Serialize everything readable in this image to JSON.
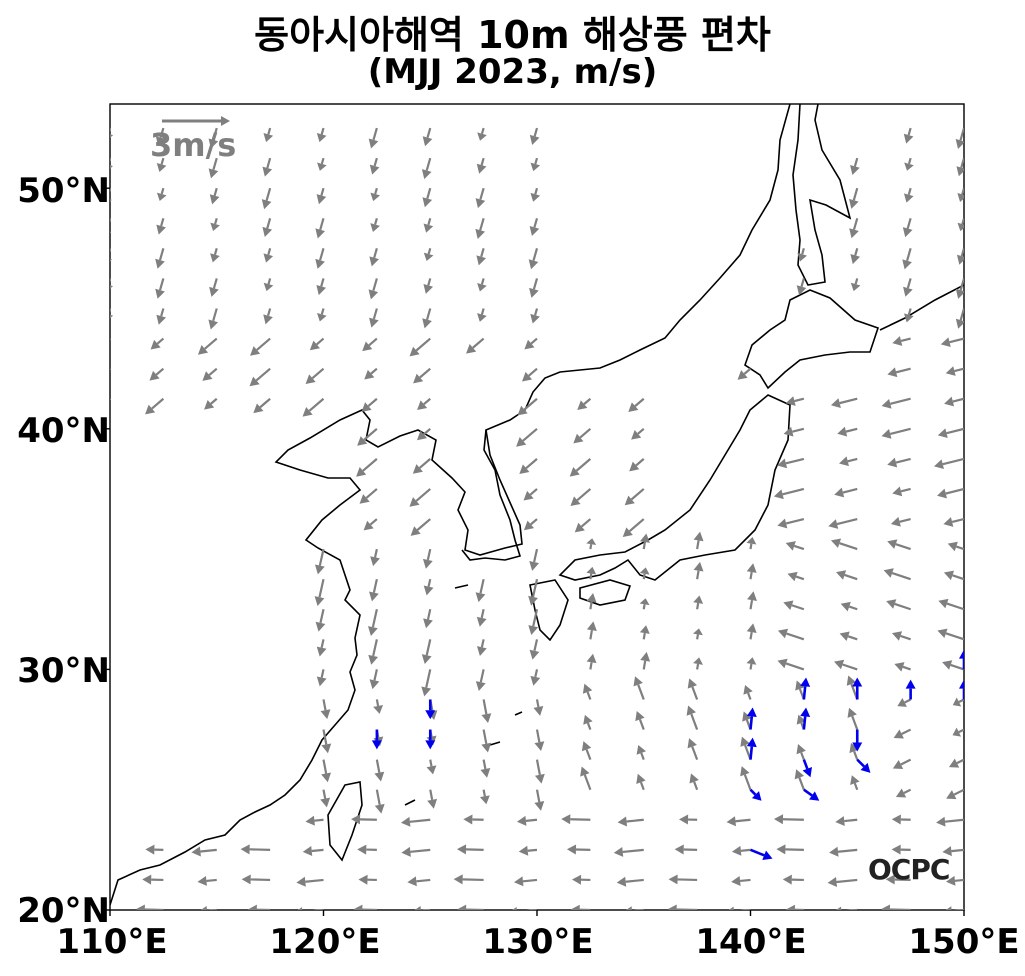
{
  "title": {
    "line1": "동아시아해역 10m 해상풍 편차",
    "line2": "(MJJ 2023, m/s)"
  },
  "axes": {
    "lon_range": [
      110,
      150
    ],
    "lat_range": [
      20,
      53.5
    ],
    "x_ticks": [
      {
        "value": 110,
        "label": "110°E"
      },
      {
        "value": 120,
        "label": "120°E"
      },
      {
        "value": 130,
        "label": "130°E"
      },
      {
        "value": 140,
        "label": "140°E"
      },
      {
        "value": 150,
        "label": "150°E"
      }
    ],
    "y_ticks": [
      {
        "value": 20,
        "label": "20°N"
      },
      {
        "value": 30,
        "label": "30°N"
      },
      {
        "value": 40,
        "label": "40°N"
      },
      {
        "value": 50,
        "label": "50°N"
      }
    ]
  },
  "reference_vector": {
    "label": "3m/s",
    "magnitude": 3,
    "color": "#7f7f7f"
  },
  "logo": "OCPC",
  "colors": {
    "coastline": "#000000",
    "vector_normal": "#7f7f7f",
    "vector_significant": "#0000ee"
  },
  "significant_vectors": [
    {
      "lon": 122.5,
      "lat": 27.5,
      "u": 0.0,
      "v": -0.9
    },
    {
      "lon": 125.0,
      "lat": 28.75,
      "u": 0.0,
      "v": -0.9
    },
    {
      "lon": 125.0,
      "lat": 27.5,
      "u": 0.0,
      "v": -0.9
    },
    {
      "lon": 140.0,
      "lat": 22.5,
      "u": 1.0,
      "v": -0.4
    },
    {
      "lon": 140.0,
      "lat": 25.0,
      "u": 0.5,
      "v": -0.5
    },
    {
      "lon": 140.0,
      "lat": 26.25,
      "u": 0.1,
      "v": 1.0
    },
    {
      "lon": 140.0,
      "lat": 27.5,
      "u": 0.1,
      "v": 1.0
    },
    {
      "lon": 142.5,
      "lat": 25.0,
      "u": 0.7,
      "v": -0.5
    },
    {
      "lon": 142.5,
      "lat": 26.25,
      "u": 0.3,
      "v": -0.8
    },
    {
      "lon": 142.5,
      "lat": 27.5,
      "u": 0.1,
      "v": 1.0
    },
    {
      "lon": 142.5,
      "lat": 28.75,
      "u": 0.1,
      "v": 1.0
    },
    {
      "lon": 145.0,
      "lat": 26.25,
      "u": 0.6,
      "v": -0.6
    },
    {
      "lon": 145.0,
      "lat": 27.5,
      "u": 0.0,
      "v": -1.0
    },
    {
      "lon": 145.0,
      "lat": 28.75,
      "u": 0.0,
      "v": 1.0
    },
    {
      "lon": 147.5,
      "lat": 28.75,
      "u": 0.0,
      "v": 0.9
    },
    {
      "lon": 150.0,
      "lat": 28.75,
      "u": 0.0,
      "v": 0.9
    },
    {
      "lon": 150.0,
      "lat": 30.0,
      "u": 0.0,
      "v": 0.9
    }
  ]
}
